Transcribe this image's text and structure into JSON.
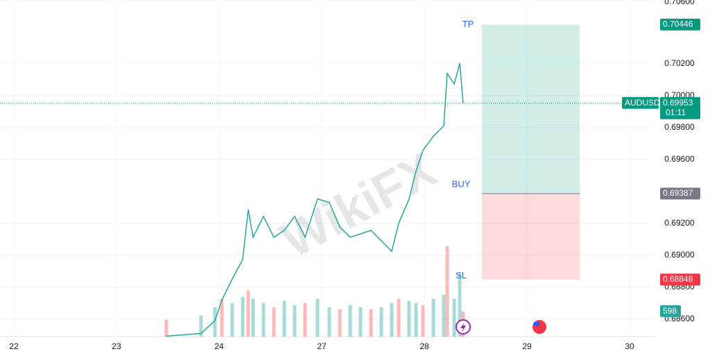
{
  "chart_data": {
    "type": "line",
    "symbol": "AUDUSD",
    "watermark": "WikiFX",
    "color": "#26a69a",
    "grid": true,
    "xlim": [
      -0.135,
      6.216
    ],
    "xticks": [
      {
        "value": 0,
        "label": "22"
      },
      {
        "value": 1,
        "label": "23"
      },
      {
        "value": 2,
        "label": "24"
      },
      {
        "value": 3,
        "label": "27"
      },
      {
        "value": 4,
        "label": "28"
      },
      {
        "value": 5,
        "label": "29"
      },
      {
        "value": 6,
        "label": "30"
      }
    ],
    "ylim": [
      0.6849,
      0.706
    ],
    "yticks": [
      {
        "value": 0.686,
        "label": "0.68600"
      },
      {
        "value": 0.688,
        "label": "0.68800"
      },
      {
        "value": 0.69,
        "label": "0.69000"
      },
      {
        "value": 0.692,
        "label": "0.69200"
      },
      {
        "value": 0.696,
        "label": "0.69600"
      },
      {
        "value": 0.698,
        "label": "0.69800"
      },
      {
        "value": 0.7,
        "label": "0.70000"
      },
      {
        "value": 0.702,
        "label": "0.70200"
      },
      {
        "value": 0.706,
        "label": "0.70600"
      }
    ],
    "x": [
      1.486,
      1.824,
      1.959,
      2.027,
      2.128,
      2.23,
      2.284,
      2.331,
      2.432,
      2.534,
      2.635,
      2.736,
      2.838,
      2.959,
      3.074,
      3.176,
      3.277,
      3.378,
      3.48,
      3.581,
      3.682,
      3.75,
      3.851,
      3.919,
      3.986,
      4.088,
      4.189,
      4.223,
      4.291,
      4.345,
      4.378
    ],
    "values": [
      0.68493,
      0.6851,
      0.68589,
      0.6872,
      0.68851,
      0.68973,
      0.69287,
      0.69113,
      0.69244,
      0.69113,
      0.69156,
      0.69244,
      0.69113,
      0.69353,
      0.69331,
      0.69178,
      0.69113,
      0.69134,
      0.69156,
      0.69091,
      0.69025,
      0.692,
      0.69353,
      0.69527,
      0.69658,
      0.69746,
      0.69811,
      0.70139,
      0.70073,
      0.70204,
      0.69953
    ],
    "volume_lim": [
      0,
      8000
    ],
    "volume": [
      400,
      500,
      700,
      900,
      800,
      950,
      1100,
      900,
      800,
      700,
      850,
      750,
      800,
      900,
      700,
      650,
      750,
      700,
      650,
      700,
      800,
      900,
      850,
      800,
      750,
      900,
      1000,
      2150,
      900,
      1500,
      598
    ],
    "current_price": {
      "value": 0.69953,
      "label": "0.69953",
      "countdown": "01:11"
    },
    "current_volume": 598,
    "position": {
      "x_start": 4.561,
      "x_end": 5.514,
      "take_profit": {
        "name": "TP",
        "value": 0.70446,
        "label": "0.70446"
      },
      "entry": {
        "name": "BUY",
        "value": 0.69387,
        "label": "0.69387"
      },
      "stop_loss": {
        "name": "SL",
        "value": 0.68848,
        "label": "0.68848"
      }
    }
  }
}
